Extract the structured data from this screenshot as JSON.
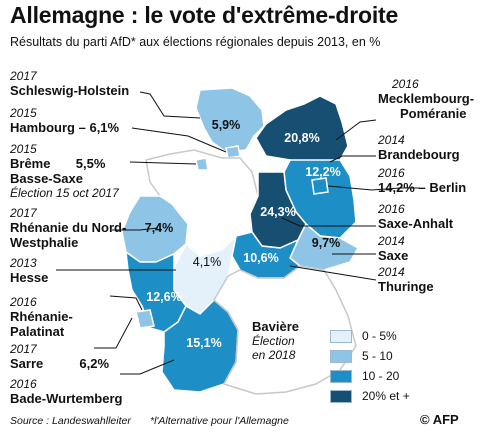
{
  "title": "Allemagne : le vote d'extrême-droite",
  "subtitle": "Résultats du parti AfD* aux élections régionales depuis 2013, en %",
  "colors": {
    "c1": "#e4f1fa",
    "c2": "#8ec4e6",
    "c3": "#1e8fc6",
    "c4": "#174f72"
  },
  "states": {
    "schleswig": {
      "year": "2017",
      "name": "Schleswig-Holstein",
      "value": "5,9%",
      "level": "5 - 10"
    },
    "hambourg": {
      "year": "2015",
      "name": "Hambourg",
      "value": "6,1%",
      "level": "5 - 10"
    },
    "breme": {
      "year": "2015",
      "name": "Brême",
      "value": "5,5%",
      "level": "5 - 10"
    },
    "basse_saxe": {
      "name": "Basse-Saxe",
      "note": "Élection 15 oct 2017"
    },
    "nrw": {
      "year": "2017",
      "name_line1": "Rhénanie du Nord-",
      "name_line2": "Westphalie",
      "value": "7,4%",
      "level": "5 - 10"
    },
    "hesse": {
      "year": "2013",
      "name": "Hesse",
      "value": "4,1%",
      "level": "0 - 5%"
    },
    "rhenanie": {
      "year": "2016",
      "name_line1": "Rhénanie-",
      "name_line2": "Palatinat",
      "value": "12,6%",
      "level": "10 - 20"
    },
    "sarre": {
      "year": "2017",
      "name": "Sarre",
      "value": "6,2%",
      "level": "5 - 10"
    },
    "bade": {
      "year": "2016",
      "name": "Bade-Wurtemberg",
      "value": "15,1%",
      "level": "10 - 20"
    },
    "baviere": {
      "name": "Bavière",
      "note_line1": "Élection",
      "note_line2": "en 2018"
    },
    "mecklembourg": {
      "year": "2016",
      "name_line1": "Mecklembourg-",
      "name_line2": "Poméranie",
      "value": "20,8%",
      "level": "20% et +"
    },
    "brandebourg": {
      "year": "2014",
      "name": "Brandebourg",
      "value": "12,2%",
      "level": "10 - 20"
    },
    "berlin": {
      "year": "2016",
      "name": "Berlin",
      "value": "14,2%",
      "level": "10 - 20"
    },
    "saxe_anhalt": {
      "year": "2016",
      "name": "Saxe-Anhalt",
      "value": "24,3%",
      "level": "20% et +"
    },
    "saxe": {
      "year": "2014",
      "name": "Saxe",
      "value": "9,7%",
      "level": "5 - 10"
    },
    "thuringe": {
      "year": "2014",
      "name": "Thuringe",
      "value": "10,6%",
      "level": "10 - 20"
    }
  },
  "legend": [
    "0 - 5%",
    "5 - 10",
    "10 - 20",
    "20% et +"
  ],
  "source": "Source : Landeswahlleiter",
  "footnote": "*l'Alternative pour l'Allemagne",
  "logo": "AFP"
}
